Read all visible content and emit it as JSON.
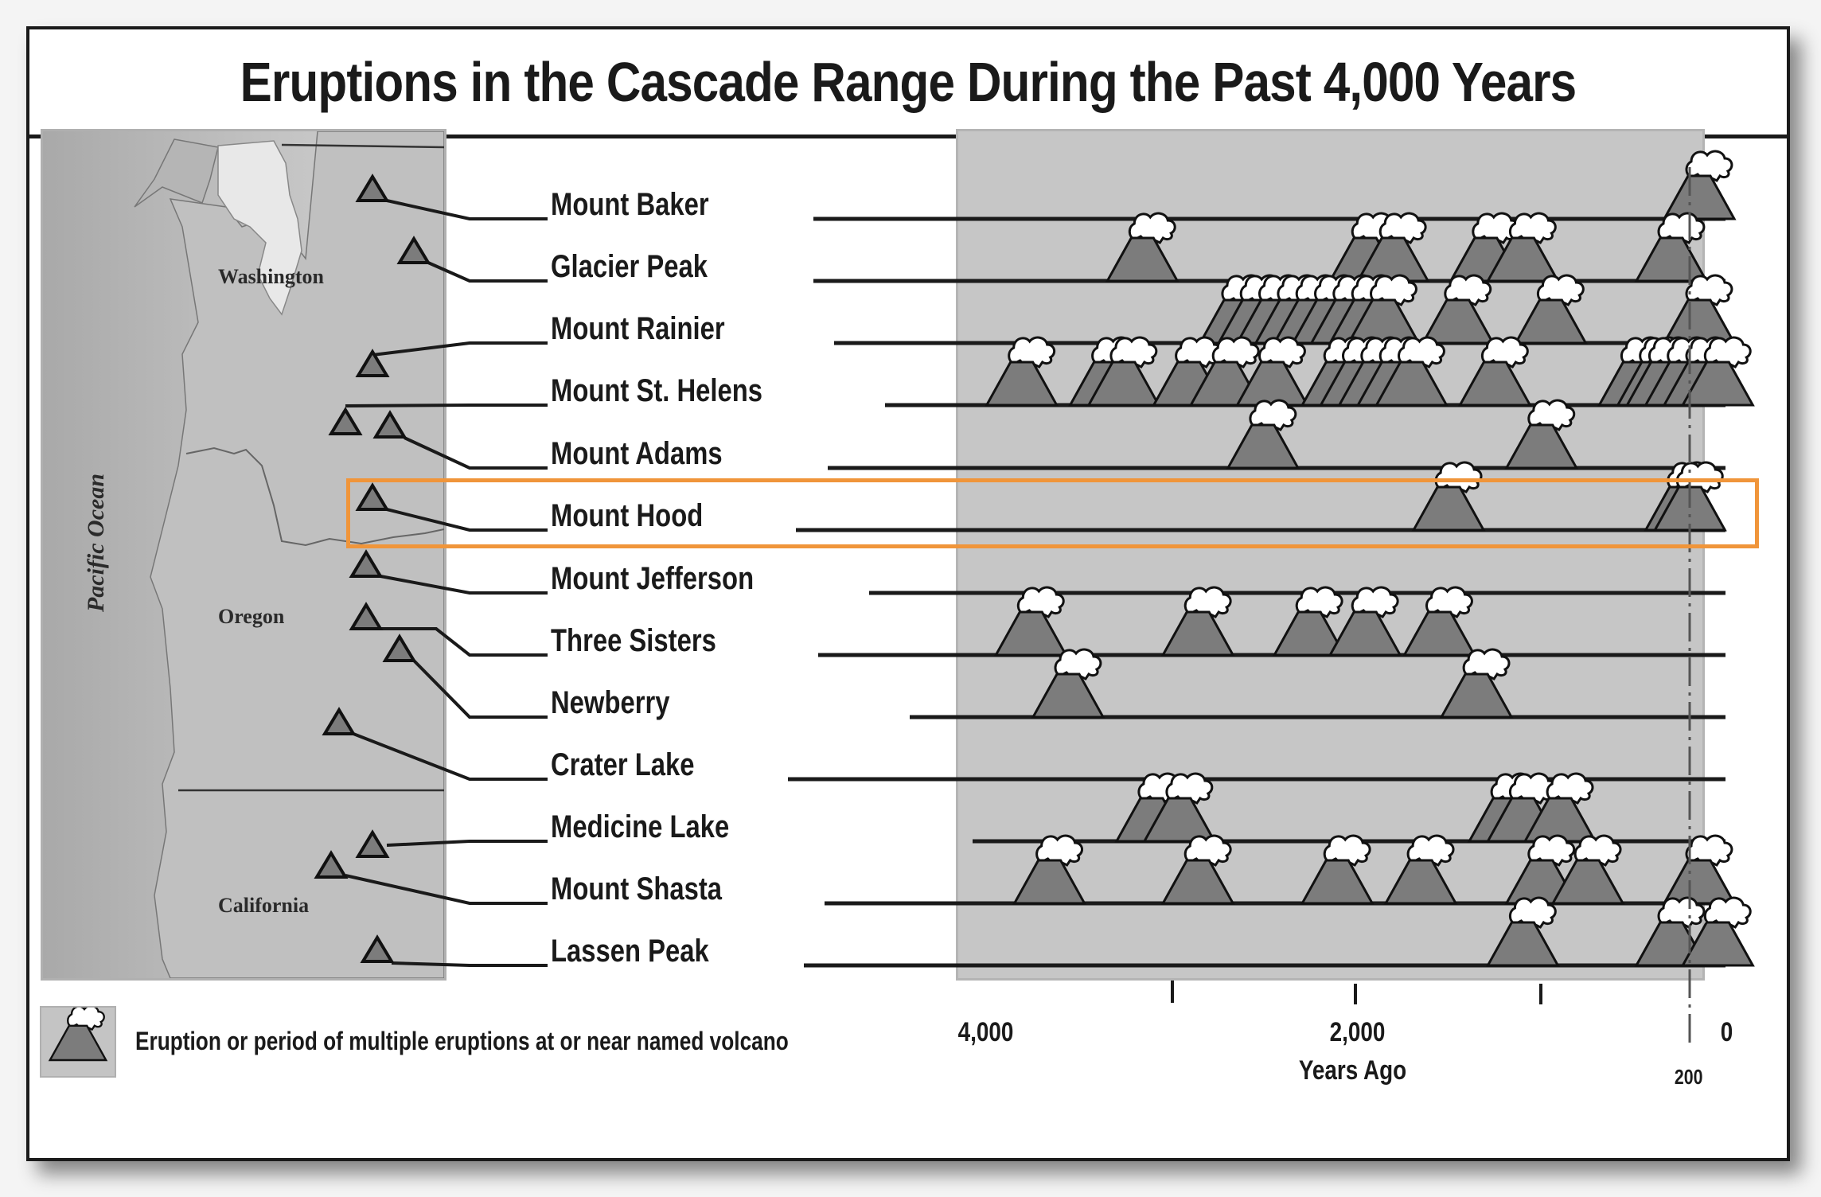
{
  "title": "Eruptions in the Cascade Range During the Past 4,000 Years",
  "map": {
    "states": [
      "Washington",
      "Oregon",
      "California"
    ],
    "ocean_label": "Pacific Ocean"
  },
  "axis": {
    "xlabel": "Years Ago",
    "tick_4000": "4,000",
    "tick_2000": "2,000",
    "tick_0": "0",
    "marker_200": "200"
  },
  "legend": {
    "text": "Eruption or period of multiple eruptions at or near named volcano"
  },
  "highlight": {
    "volcano": "Mount Hood",
    "color": "#f0953a"
  },
  "volcanoes": [
    {
      "name": "Mount Baker"
    },
    {
      "name": "Glacier Peak"
    },
    {
      "name": "Mount Rainier"
    },
    {
      "name": "Mount St. Helens"
    },
    {
      "name": "Mount Adams"
    },
    {
      "name": "Mount Hood"
    },
    {
      "name": "Mount Jefferson"
    },
    {
      "name": "Three Sisters"
    },
    {
      "name": "Newberry"
    },
    {
      "name": "Crater Lake"
    },
    {
      "name": "Medicine Lake"
    },
    {
      "name": "Mount Shasta"
    },
    {
      "name": "Lassen Peak"
    }
  ],
  "chart_data": {
    "type": "scatter",
    "title": "Eruptions in the Cascade Range During the Past 4,000 Years",
    "xlabel": "Years Ago",
    "ylabel": "",
    "xlim": [
      4000,
      0
    ],
    "x_ticks": [
      4000,
      3000,
      2000,
      1000,
      0
    ],
    "x_tick_labels": [
      "4,000",
      "",
      "2,000",
      "",
      "0"
    ],
    "reference_line": {
      "x": 200,
      "style": "dashed",
      "label": "200"
    },
    "legend": [
      "Eruption or period of multiple eruptions at or near named volcano"
    ],
    "grid": false,
    "categories": [
      "Mount Baker",
      "Glacier Peak",
      "Mount Rainier",
      "Mount St. Helens",
      "Mount Adams",
      "Mount Hood",
      "Mount Jefferson",
      "Three Sisters",
      "Newberry",
      "Crater Lake",
      "Medicine Lake",
      "Mount Shasta",
      "Lassen Peak"
    ],
    "series": [
      {
        "name": "Mount Baker",
        "eruptions_years_ago": [
          150
        ]
      },
      {
        "name": "Glacier Peak",
        "eruptions_years_ago": [
          3150,
          1950,
          1800,
          1300,
          1100,
          300
        ]
      },
      {
        "name": "Mount Rainier",
        "eruptions_years_ago": [
          2650,
          2550,
          2450,
          2350,
          2250,
          2150,
          2050,
          1950,
          1850,
          1450,
          950,
          150
        ]
      },
      {
        "name": "Mount St. Helens",
        "eruptions_years_ago": [
          3800,
          3350,
          3250,
          2900,
          2700,
          2450,
          2100,
          2000,
          1900,
          1800,
          1700,
          1250,
          500,
          400,
          350,
          250,
          150,
          50
        ]
      },
      {
        "name": "Mount Adams",
        "eruptions_years_ago": [
          2500,
          1000
        ]
      },
      {
        "name": "Mount Hood",
        "eruptions_years_ago": [
          1500,
          250,
          200
        ]
      },
      {
        "name": "Mount Jefferson",
        "eruptions_years_ago": []
      },
      {
        "name": "Three Sisters",
        "eruptions_years_ago": [
          3750,
          2850,
          2250,
          1950,
          1550
        ]
      },
      {
        "name": "Newberry",
        "eruptions_years_ago": [
          3550,
          1350
        ]
      },
      {
        "name": "Crater Lake",
        "eruptions_years_ago": []
      },
      {
        "name": "Medicine Lake",
        "eruptions_years_ago": [
          3100,
          2950,
          1200,
          1100,
          900
        ]
      },
      {
        "name": "Mount Shasta",
        "eruptions_years_ago": [
          3650,
          2850,
          2100,
          1650,
          1000,
          750,
          150
        ]
      },
      {
        "name": "Lassen Peak",
        "eruptions_years_ago": [
          1100,
          300,
          50
        ]
      }
    ]
  }
}
